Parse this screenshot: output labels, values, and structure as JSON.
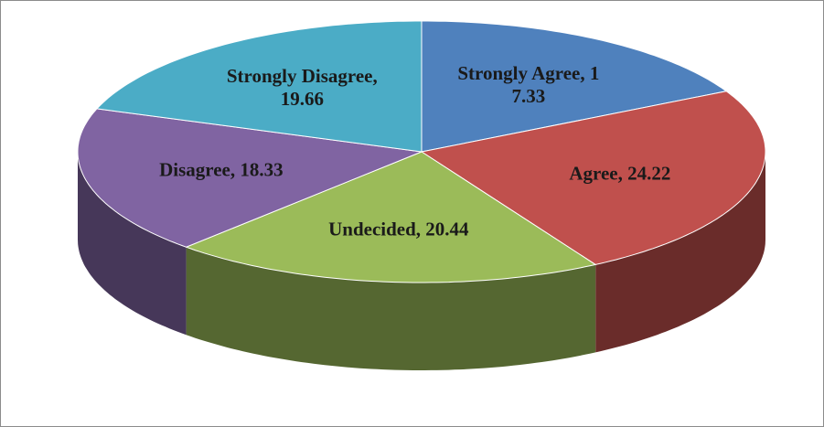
{
  "chart_data": {
    "type": "pie",
    "categories": [
      "Strongly Agree",
      "Agree",
      "Undecided",
      "Disagree",
      "Strongly Disagree"
    ],
    "values": [
      17.33,
      24.22,
      20.44,
      18.33,
      19.66
    ],
    "value_labels": [
      "Strongly Agree, 17.33",
      "Agree, 24.22",
      "Undecided, 20.44",
      "Disagree, 18.33",
      "Strongly Disagree, 19.66"
    ],
    "colors": [
      "#4f81bd",
      "#c0504d",
      "#9bbb59",
      "#8064a2",
      "#4bacc6"
    ],
    "three_d": true
  }
}
